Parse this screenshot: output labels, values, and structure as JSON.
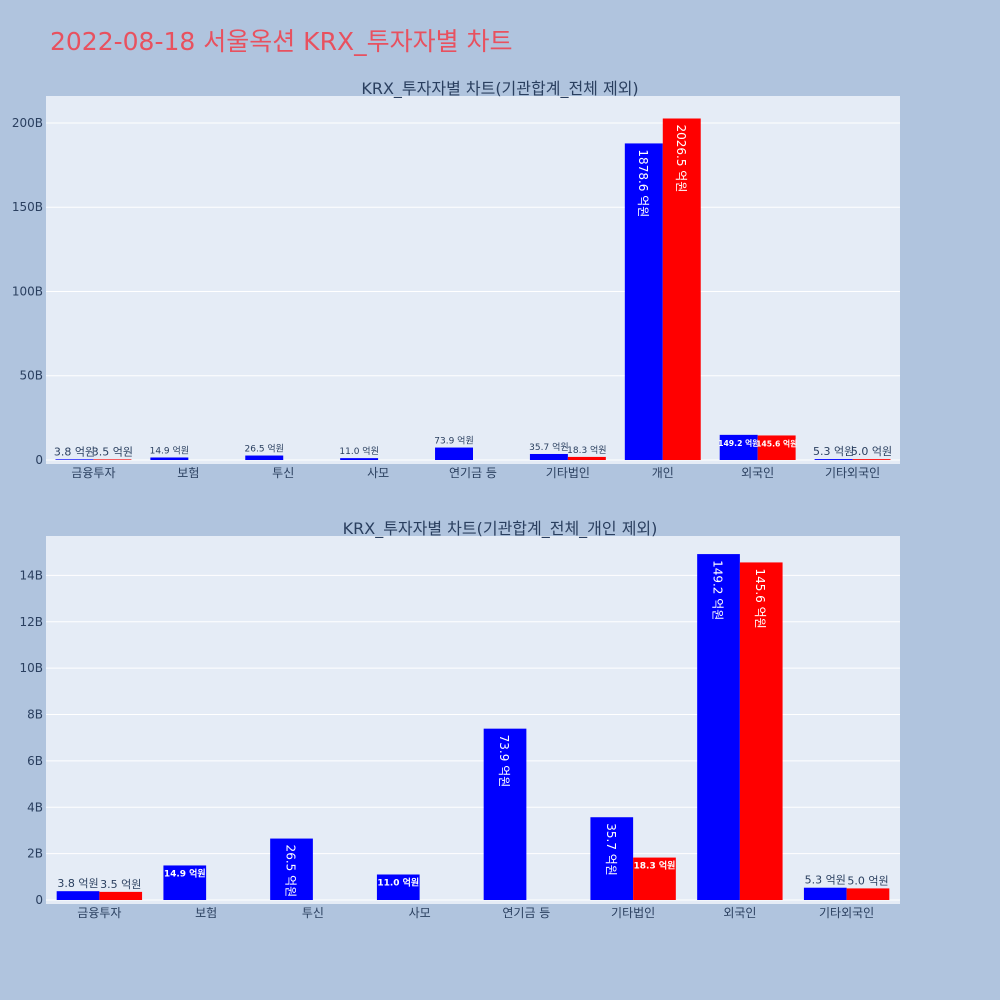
{
  "page": {
    "title": "2022-08-18 서울옥션 KRX_투자자별 차트",
    "background": "#b0c4de",
    "title_color": "#e8515f"
  },
  "colors": {
    "buy": "#0000ff",
    "sell": "#ff0000",
    "plot_bg": "#e5ecf6"
  },
  "chart_data": [
    {
      "type": "bar",
      "title": "KRX_투자자별 차트(기관합계_전체 제외)",
      "categories": [
        "금융투자",
        "보험",
        "투신",
        "사모",
        "연기금 등",
        "기타법인",
        "개인",
        "외국인",
        "기타외국인"
      ],
      "series": [
        {
          "values": [
            380000000,
            1490000000,
            2650000000,
            1100000000,
            7390000000,
            3570000000,
            187860000000,
            14920000000,
            530000000
          ],
          "labels": [
            "3.8 억원",
            "14.9 억원",
            "26.5 억원",
            "11.0 억원",
            "73.9 억원",
            "35.7 억원",
            "1878.6 억원",
            "149.2 억원",
            "5.3 억원"
          ]
        },
        {
          "values": [
            350000000,
            0,
            0,
            0,
            0,
            1830000000,
            202650000000,
            14560000000,
            500000000
          ],
          "labels": [
            "3.5 억원",
            "",
            "",
            "",
            "",
            "18.3 억원",
            "2026.5 억원",
            "145.6 억원",
            "5.0 억원"
          ]
        }
      ],
      "ylim": [
        0,
        216000000000
      ],
      "yticks": [
        0,
        50000000000,
        100000000000,
        150000000000,
        200000000000
      ],
      "ytick_labels": [
        "0",
        "50B",
        "100B",
        "150B",
        "200B"
      ],
      "xlabel": "",
      "ylabel": "",
      "grid": true
    },
    {
      "type": "bar",
      "title": "KRX_투자자별 차트(기관합계_전체_개인 제외)",
      "categories": [
        "금융투자",
        "보험",
        "투신",
        "사모",
        "연기금 등",
        "기타법인",
        "외국인",
        "기타외국인"
      ],
      "series": [
        {
          "values": [
            380000000,
            1490000000,
            2650000000,
            1100000000,
            7390000000,
            3570000000,
            14920000000,
            530000000
          ],
          "labels": [
            "3.8 억원",
            "14.9 억원",
            "26.5 억원",
            "11.0 억원",
            "73.9 억원",
            "35.7 억원",
            "149.2 억원",
            "5.3 억원"
          ]
        },
        {
          "values": [
            350000000,
            0,
            0,
            0,
            0,
            1830000000,
            14560000000,
            500000000
          ],
          "labels": [
            "3.5 억원",
            "",
            "",
            "",
            "",
            "18.3 억원",
            "145.6 억원",
            "5.0 억원"
          ]
        }
      ],
      "ylim": [
        0,
        15700000000
      ],
      "yticks": [
        0,
        2000000000,
        4000000000,
        6000000000,
        8000000000,
        10000000000,
        12000000000,
        14000000000
      ],
      "ytick_labels": [
        "0",
        "2B",
        "4B",
        "6B",
        "8B",
        "10B",
        "12B",
        "14B"
      ],
      "xlabel": "",
      "ylabel": "",
      "grid": true
    }
  ]
}
